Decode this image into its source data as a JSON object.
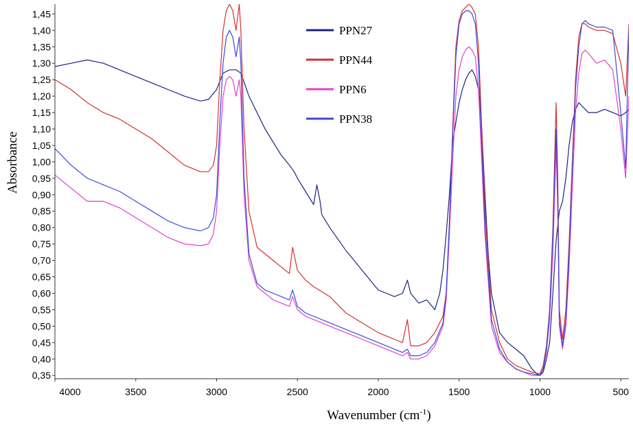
{
  "chart_data": {
    "type": "line",
    "title": "",
    "xlabel": "Wavenumber (cm",
    "xlabel_sup": "-1",
    "xlabel_end": ")",
    "ylabel": "Absorbance",
    "xlim": [
      4000,
      450
    ],
    "ylim": [
      0.34,
      1.48
    ],
    "x_reversed": true,
    "grid": false,
    "legend": "top-center",
    "x_ticks": [
      4000,
      3500,
      3000,
      2500,
      2000,
      1500,
      1000,
      500
    ],
    "x_tick_labels": [
      "4000",
      "3500",
      "3000",
      "2500",
      "2000",
      "1500",
      "1000",
      "500"
    ],
    "y_ticks": [
      0.35,
      0.4,
      0.45,
      0.5,
      0.55,
      0.6,
      0.65,
      0.7,
      0.75,
      0.8,
      0.85,
      0.9,
      0.95,
      1.0,
      1.05,
      1.1,
      1.15,
      1.2,
      1.25,
      1.3,
      1.35,
      1.4,
      1.45
    ],
    "y_tick_labels": [
      "0,35",
      "0,40",
      "0,45",
      "0,50",
      "0,55",
      "0,60",
      "0,65",
      "0,70",
      "0,75",
      "0,80",
      "0,85",
      "0,90",
      "0,95",
      "1,00",
      "1,05",
      "1,10",
      "1,15",
      "1,20",
      "1,25",
      "1,30",
      "1,35",
      "1,40",
      "1,45"
    ],
    "series": [
      {
        "name": "PPN27",
        "color": "#1a237e",
        "x": [
          4000,
          3900,
          3800,
          3700,
          3600,
          3500,
          3400,
          3300,
          3200,
          3100,
          3050,
          3000,
          2960,
          2920,
          2880,
          2850,
          2800,
          2700,
          2600,
          2550,
          2520,
          2500,
          2450,
          2400,
          2380,
          2360,
          2350,
          2300,
          2200,
          2100,
          2000,
          1950,
          1900,
          1850,
          1820,
          1800,
          1750,
          1700,
          1650,
          1620,
          1600,
          1580,
          1560,
          1550,
          1540,
          1520,
          1500,
          1480,
          1460,
          1440,
          1420,
          1400,
          1380,
          1360,
          1340,
          1320,
          1300,
          1250,
          1200,
          1150,
          1100,
          1050,
          1020,
          1000,
          980,
          960,
          940,
          920,
          900,
          880,
          860,
          840,
          820,
          800,
          780,
          760,
          740,
          720,
          700,
          650,
          600,
          550,
          500,
          470,
          450
        ],
        "y": [
          1.29,
          1.3,
          1.31,
          1.3,
          1.28,
          1.26,
          1.24,
          1.22,
          1.2,
          1.185,
          1.19,
          1.22,
          1.27,
          1.28,
          1.28,
          1.27,
          1.2,
          1.1,
          1.02,
          0.99,
          0.97,
          0.95,
          0.91,
          0.87,
          0.93,
          0.88,
          0.84,
          0.8,
          0.73,
          0.67,
          0.61,
          0.6,
          0.59,
          0.6,
          0.64,
          0.6,
          0.57,
          0.58,
          0.55,
          0.6,
          0.67,
          0.78,
          0.9,
          0.98,
          1.06,
          1.12,
          1.18,
          1.22,
          1.25,
          1.27,
          1.28,
          1.26,
          1.22,
          1.1,
          0.9,
          0.72,
          0.6,
          0.48,
          0.45,
          0.43,
          0.41,
          0.37,
          0.355,
          0.35,
          0.36,
          0.4,
          0.45,
          0.6,
          0.76,
          0.85,
          0.88,
          0.95,
          1.05,
          1.12,
          1.16,
          1.18,
          1.17,
          1.16,
          1.15,
          1.15,
          1.16,
          1.15,
          1.14,
          1.15,
          1.16
        ]
      },
      {
        "name": "PPN44",
        "color": "#d32f2f",
        "x": [
          4000,
          3900,
          3800,
          3700,
          3600,
          3500,
          3400,
          3300,
          3200,
          3100,
          3050,
          3020,
          3000,
          2980,
          2960,
          2940,
          2920,
          2900,
          2880,
          2860,
          2850,
          2830,
          2800,
          2750,
          2700,
          2650,
          2600,
          2550,
          2530,
          2500,
          2450,
          2400,
          2300,
          2200,
          2100,
          2000,
          1900,
          1850,
          1820,
          1800,
          1750,
          1700,
          1650,
          1600,
          1580,
          1560,
          1540,
          1520,
          1500,
          1480,
          1460,
          1440,
          1420,
          1400,
          1380,
          1360,
          1340,
          1300,
          1250,
          1200,
          1150,
          1100,
          1050,
          1000,
          980,
          960,
          940,
          920,
          900,
          890,
          880,
          860,
          840,
          820,
          800,
          780,
          760,
          740,
          720,
          700,
          650,
          600,
          550,
          500,
          470,
          450
        ],
        "y": [
          1.25,
          1.22,
          1.18,
          1.15,
          1.13,
          1.1,
          1.07,
          1.03,
          0.99,
          0.97,
          0.97,
          0.99,
          1.05,
          1.25,
          1.4,
          1.46,
          1.48,
          1.46,
          1.4,
          1.48,
          1.4,
          1.1,
          0.85,
          0.74,
          0.72,
          0.7,
          0.68,
          0.66,
          0.74,
          0.67,
          0.64,
          0.62,
          0.59,
          0.54,
          0.51,
          0.48,
          0.46,
          0.45,
          0.52,
          0.44,
          0.44,
          0.45,
          0.48,
          0.53,
          0.6,
          0.8,
          1.1,
          1.35,
          1.43,
          1.46,
          1.47,
          1.48,
          1.47,
          1.45,
          1.35,
          1.1,
          0.85,
          0.55,
          0.45,
          0.4,
          0.38,
          0.37,
          0.36,
          0.355,
          0.38,
          0.44,
          0.55,
          0.8,
          1.18,
          0.95,
          0.55,
          0.46,
          0.55,
          0.75,
          1.0,
          1.25,
          1.38,
          1.42,
          1.42,
          1.41,
          1.4,
          1.4,
          1.39,
          1.3,
          1.2,
          1.42
        ]
      },
      {
        "name": "PPN6",
        "color": "#e040d0",
        "x": [
          4000,
          3900,
          3800,
          3700,
          3600,
          3500,
          3400,
          3300,
          3200,
          3100,
          3050,
          3020,
          3000,
          2980,
          2960,
          2940,
          2920,
          2900,
          2880,
          2860,
          2850,
          2830,
          2800,
          2750,
          2700,
          2650,
          2600,
          2550,
          2530,
          2500,
          2450,
          2400,
          2300,
          2200,
          2100,
          2000,
          1900,
          1850,
          1820,
          1800,
          1750,
          1700,
          1650,
          1600,
          1580,
          1560,
          1540,
          1520,
          1500,
          1480,
          1460,
          1440,
          1420,
          1400,
          1380,
          1360,
          1340,
          1300,
          1250,
          1200,
          1150,
          1100,
          1050,
          1000,
          980,
          960,
          940,
          920,
          900,
          890,
          880,
          860,
          840,
          820,
          800,
          780,
          760,
          740,
          720,
          700,
          650,
          600,
          550,
          500,
          470,
          450
        ],
        "y": [
          0.96,
          0.92,
          0.88,
          0.88,
          0.86,
          0.83,
          0.8,
          0.77,
          0.75,
          0.745,
          0.75,
          0.78,
          0.85,
          1.05,
          1.2,
          1.25,
          1.26,
          1.25,
          1.2,
          1.25,
          1.2,
          0.9,
          0.7,
          0.62,
          0.6,
          0.58,
          0.57,
          0.56,
          0.59,
          0.55,
          0.53,
          0.52,
          0.5,
          0.48,
          0.46,
          0.44,
          0.42,
          0.41,
          0.42,
          0.4,
          0.4,
          0.41,
          0.44,
          0.5,
          0.58,
          0.78,
          1.0,
          1.2,
          1.28,
          1.32,
          1.34,
          1.35,
          1.34,
          1.32,
          1.22,
          1.0,
          0.78,
          0.5,
          0.42,
          0.39,
          0.37,
          0.36,
          0.35,
          0.35,
          0.37,
          0.42,
          0.52,
          0.72,
          1.05,
          0.85,
          0.5,
          0.43,
          0.5,
          0.68,
          0.92,
          1.15,
          1.27,
          1.33,
          1.34,
          1.33,
          1.3,
          1.31,
          1.28,
          1.1,
          0.95,
          1.2
        ]
      },
      {
        "name": "PPN38",
        "color": "#3949d8",
        "x": [
          4000,
          3900,
          3800,
          3700,
          3600,
          3500,
          3400,
          3300,
          3200,
          3100,
          3050,
          3020,
          3000,
          2980,
          2960,
          2940,
          2920,
          2900,
          2880,
          2860,
          2850,
          2830,
          2800,
          2750,
          2700,
          2650,
          2600,
          2550,
          2530,
          2500,
          2450,
          2400,
          2300,
          2200,
          2100,
          2000,
          1900,
          1850,
          1820,
          1800,
          1750,
          1700,
          1650,
          1600,
          1580,
          1560,
          1540,
          1520,
          1500,
          1480,
          1460,
          1440,
          1420,
          1400,
          1380,
          1360,
          1340,
          1300,
          1250,
          1200,
          1150,
          1100,
          1050,
          1000,
          980,
          960,
          940,
          920,
          900,
          890,
          880,
          860,
          840,
          820,
          800,
          780,
          760,
          740,
          720,
          700,
          650,
          600,
          550,
          500,
          470,
          450
        ],
        "y": [
          1.04,
          0.99,
          0.95,
          0.93,
          0.91,
          0.88,
          0.85,
          0.82,
          0.8,
          0.79,
          0.8,
          0.83,
          0.9,
          1.12,
          1.3,
          1.38,
          1.4,
          1.38,
          1.32,
          1.38,
          1.3,
          0.95,
          0.72,
          0.63,
          0.61,
          0.6,
          0.59,
          0.58,
          0.61,
          0.56,
          0.54,
          0.53,
          0.51,
          0.49,
          0.47,
          0.45,
          0.43,
          0.42,
          0.43,
          0.41,
          0.41,
          0.42,
          0.45,
          0.51,
          0.6,
          0.82,
          1.08,
          1.32,
          1.42,
          1.45,
          1.46,
          1.46,
          1.45,
          1.42,
          1.3,
          1.05,
          0.8,
          0.52,
          0.43,
          0.39,
          0.37,
          0.36,
          0.355,
          0.35,
          0.37,
          0.43,
          0.55,
          0.78,
          1.1,
          0.9,
          0.52,
          0.44,
          0.52,
          0.72,
          0.98,
          1.22,
          1.35,
          1.42,
          1.43,
          1.42,
          1.41,
          1.41,
          1.4,
          1.15,
          0.98,
          1.4
        ]
      }
    ]
  }
}
